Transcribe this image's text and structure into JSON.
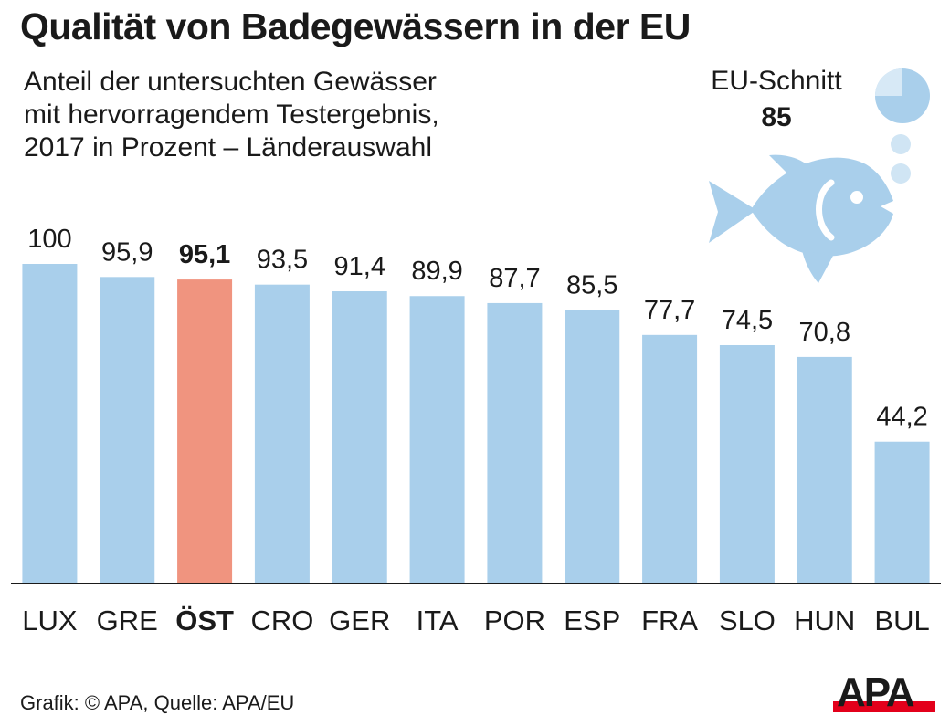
{
  "title": "Qualität von Badegewässern in der EU",
  "subtitle": {
    "line1": "Anteil der untersuchten Gewässer",
    "line2": "mit hervorragendem Testergebnis,",
    "line3": "2017 in Prozent – Länderauswahl"
  },
  "eu_average": {
    "label": "EU-Schnitt",
    "value": "85"
  },
  "source": "Grafik: © APA, Quelle: APA/EU",
  "logo_text": "APA",
  "colors": {
    "bar": "#a9cfeb",
    "highlight": "#f0947f",
    "axis": "#1a1a1a",
    "fish": "#a9cfeb",
    "fish_eye": "#ffffff"
  },
  "chart_data": {
    "type": "bar",
    "title": "Qualität von Badegewässern in der EU",
    "xlabel": "",
    "ylabel": "Prozent",
    "ylim": [
      0,
      100
    ],
    "grid": false,
    "categories": [
      "LUX",
      "GRE",
      "ÖST",
      "CRO",
      "GER",
      "ITA",
      "POR",
      "ESP",
      "FRA",
      "SLO",
      "HUN",
      "BUL"
    ],
    "values": [
      100,
      95.9,
      95.1,
      93.5,
      91.4,
      89.9,
      87.7,
      85.5,
      77.7,
      74.5,
      70.8,
      44.2
    ],
    "value_labels": [
      "100",
      "95,9",
      "95,1",
      "93,5",
      "91,4",
      "89,9",
      "87,7",
      "85,5",
      "77,7",
      "74,5",
      "70,8",
      "44,2"
    ],
    "highlight": "ÖST"
  }
}
